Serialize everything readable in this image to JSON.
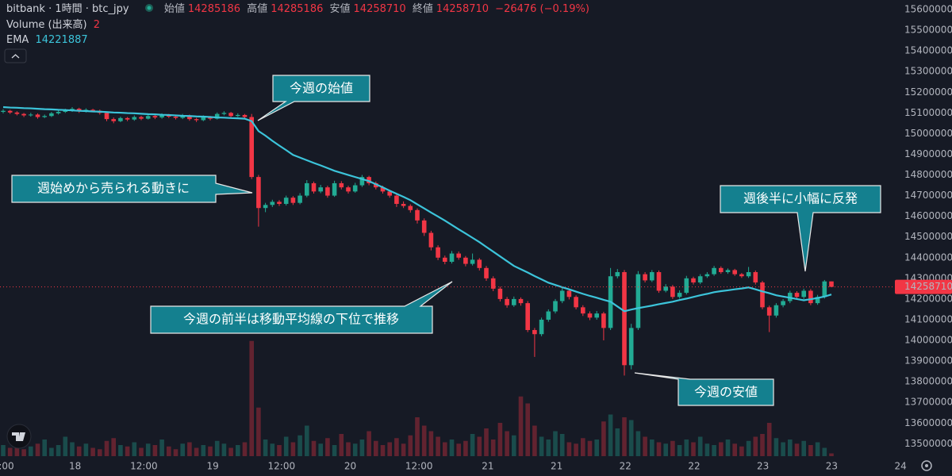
{
  "chart_data": {
    "type": "candlestick",
    "header": {
      "symbol": "bitbank · 1時間 · btc_jpy",
      "open_label": "始値",
      "high_label": "高値",
      "low_label": "安値",
      "close_label": "終値",
      "change": "−26476 (−0.19%)",
      "volume_label": "Volume (出来高)",
      "ema_label": "EMA"
    },
    "x_labels": [
      ":00",
      "18",
      "12:00",
      "19",
      "12:00",
      "20",
      "12:00",
      "21",
      "21",
      "22",
      "22",
      "23",
      "23",
      "24"
    ],
    "up_color": "#22ab94",
    "down_color": "#f23645",
    "ema_color": "#3cc4da",
    "ylim": [
      13440000,
      15646000
    ],
    "yticks": [
      13500000,
      13600000,
      13700000,
      13800000,
      13900000,
      14000000,
      14100000,
      14200000,
      14300000,
      14400000,
      14500000,
      14600000,
      14700000,
      14800000,
      14900000,
      15000000,
      15100000,
      15200000,
      15300000,
      15400000,
      15500000,
      15600000
    ],
    "grid": false,
    "vlim": [
      0,
      100
    ],
    "ohlc": [
      [
        15105000,
        15118000,
        15098000,
        15110000
      ],
      [
        15110000,
        15115000,
        15095000,
        15102000
      ],
      [
        15102000,
        15108000,
        15088000,
        15095000
      ],
      [
        15095000,
        15100000,
        15080000,
        15088000
      ],
      [
        15088000,
        15100000,
        15082000,
        15092000
      ],
      [
        15092000,
        15098000,
        15072000,
        15080000
      ],
      [
        15080000,
        15092000,
        15075000,
        15085000
      ],
      [
        15085000,
        15105000,
        15080000,
        15098000
      ],
      [
        15098000,
        15112000,
        15092000,
        15105000
      ],
      [
        15105000,
        15120000,
        15100000,
        15112000
      ],
      [
        15112000,
        15128000,
        15105000,
        15120000
      ],
      [
        15120000,
        15125000,
        15100000,
        15108000
      ],
      [
        15108000,
        15122000,
        15102000,
        15115000
      ],
      [
        15115000,
        15120000,
        15104000,
        15110000
      ],
      [
        15110000,
        15116000,
        15092000,
        15100000
      ],
      [
        15100000,
        15105000,
        15060000,
        15070000
      ],
      [
        15070000,
        15078000,
        15050000,
        15060000
      ],
      [
        15060000,
        15082000,
        15055000,
        15075000
      ],
      [
        15075000,
        15080000,
        15060000,
        15068000
      ],
      [
        15068000,
        15088000,
        15062000,
        15080000
      ],
      [
        15080000,
        15086000,
        15065000,
        15072000
      ],
      [
        15072000,
        15092000,
        15068000,
        15085000
      ],
      [
        15085000,
        15090000,
        15070000,
        15078000
      ],
      [
        15078000,
        15098000,
        15072000,
        15090000
      ],
      [
        15090000,
        15095000,
        15075000,
        15082000
      ],
      [
        15082000,
        15088000,
        15068000,
        15076000
      ],
      [
        15076000,
        15095000,
        15070000,
        15088000
      ],
      [
        15088000,
        15092000,
        15062000,
        15070000
      ],
      [
        15070000,
        15076000,
        15056000,
        15065000
      ],
      [
        15065000,
        15088000,
        15060000,
        15080000
      ],
      [
        15080000,
        15085000,
        15064000,
        15072000
      ],
      [
        15072000,
        15102000,
        15068000,
        15095000
      ],
      [
        15095000,
        15108000,
        15088000,
        15100000
      ],
      [
        15100000,
        15105000,
        15078000,
        15085000
      ],
      [
        15085000,
        15098000,
        15080000,
        15090000
      ],
      [
        15090000,
        15095000,
        15072000,
        15080000
      ],
      [
        15080000,
        15095000,
        14780000,
        14790000
      ],
      [
        14790000,
        14800000,
        14550000,
        14640000
      ],
      [
        14640000,
        14665000,
        14620000,
        14655000
      ],
      [
        14655000,
        14680000,
        14645000,
        14670000
      ],
      [
        14670000,
        14678000,
        14650000,
        14660000
      ],
      [
        14660000,
        14700000,
        14652000,
        14690000
      ],
      [
        14690000,
        14698000,
        14655000,
        14665000
      ],
      [
        14665000,
        14712000,
        14658000,
        14700000
      ],
      [
        14700000,
        14775000,
        14692000,
        14760000
      ],
      [
        14760000,
        14768000,
        14710000,
        14720000
      ],
      [
        14720000,
        14752000,
        14712000,
        14740000
      ],
      [
        14740000,
        14748000,
        14690000,
        14700000
      ],
      [
        14700000,
        14772000,
        14694000,
        14760000
      ],
      [
        14760000,
        14770000,
        14730000,
        14740000
      ],
      [
        14740000,
        14748000,
        14710000,
        14720000
      ],
      [
        14720000,
        14762000,
        14714000,
        14750000
      ],
      [
        14750000,
        14800000,
        14742000,
        14790000
      ],
      [
        14790000,
        14796000,
        14750000,
        14760000
      ],
      [
        14760000,
        14768000,
        14730000,
        14740000
      ],
      [
        14740000,
        14748000,
        14710000,
        14720000
      ],
      [
        14720000,
        14728000,
        14690000,
        14700000
      ],
      [
        14700000,
        14708000,
        14645000,
        14660000
      ],
      [
        14660000,
        14672000,
        14640000,
        14650000
      ],
      [
        14650000,
        14658000,
        14618000,
        14630000
      ],
      [
        14630000,
        14638000,
        14565000,
        14580000
      ],
      [
        14580000,
        14590000,
        14505000,
        14520000
      ],
      [
        14520000,
        14530000,
        14435000,
        14450000
      ],
      [
        14450000,
        14460000,
        14388000,
        14400000
      ],
      [
        14400000,
        14410000,
        14368000,
        14380000
      ],
      [
        14380000,
        14432000,
        14372000,
        14420000
      ],
      [
        14420000,
        14430000,
        14390000,
        14400000
      ],
      [
        14400000,
        14408000,
        14358000,
        14370000
      ],
      [
        14370000,
        14420000,
        14362000,
        14390000
      ],
      [
        14390000,
        14398000,
        14338000,
        14350000
      ],
      [
        14350000,
        14360000,
        14288000,
        14300000
      ],
      [
        14300000,
        14310000,
        14238000,
        14250000
      ],
      [
        14250000,
        14260000,
        14188000,
        14200000
      ],
      [
        14200000,
        14210000,
        14158000,
        14170000
      ],
      [
        14170000,
        14212000,
        14162000,
        14200000
      ],
      [
        14200000,
        14208000,
        14168000,
        14180000
      ],
      [
        14180000,
        14190000,
        14040000,
        14050000
      ],
      [
        14050000,
        14060000,
        13920000,
        14030000
      ],
      [
        14030000,
        14110000,
        14020000,
        14100000
      ],
      [
        14100000,
        14150000,
        14090000,
        14140000
      ],
      [
        14140000,
        14200000,
        14130000,
        14190000
      ],
      [
        14190000,
        14255000,
        14180000,
        14240000
      ],
      [
        14240000,
        14248000,
        14198000,
        14210000
      ],
      [
        14210000,
        14218000,
        14150000,
        14160000
      ],
      [
        14160000,
        14170000,
        14118000,
        14130000
      ],
      [
        14130000,
        14140000,
        14098000,
        14110000
      ],
      [
        14110000,
        14142000,
        14100000,
        14130000
      ],
      [
        14130000,
        14138000,
        14000000,
        14060000
      ],
      [
        14060000,
        14350000,
        14050000,
        14310000
      ],
      [
        14310000,
        14345000,
        14300000,
        14330000
      ],
      [
        14330000,
        14340000,
        13830000,
        13880000
      ],
      [
        13880000,
        14080000,
        13860000,
        14060000
      ],
      [
        14060000,
        14335000,
        14050000,
        14320000
      ],
      [
        14320000,
        14330000,
        14280000,
        14290000
      ],
      [
        14290000,
        14340000,
        14282000,
        14330000
      ],
      [
        14330000,
        14338000,
        14230000,
        14240000
      ],
      [
        14240000,
        14272000,
        14232000,
        14260000
      ],
      [
        14260000,
        14268000,
        14200000,
        14210000
      ],
      [
        14210000,
        14242000,
        14202000,
        14230000
      ],
      [
        14230000,
        14312000,
        14222000,
        14300000
      ],
      [
        14300000,
        14308000,
        14270000,
        14280000
      ],
      [
        14280000,
        14320000,
        14272000,
        14310000
      ],
      [
        14310000,
        14330000,
        14302000,
        14320000
      ],
      [
        14320000,
        14360000,
        14312000,
        14350000
      ],
      [
        14350000,
        14358000,
        14322000,
        14330000
      ],
      [
        14330000,
        14348000,
        14322000,
        14340000
      ],
      [
        14340000,
        14346000,
        14312000,
        14320000
      ],
      [
        14320000,
        14326000,
        14302000,
        14310000
      ],
      [
        14310000,
        14355000,
        14302000,
        14330000
      ],
      [
        14330000,
        14338000,
        14270000,
        14280000
      ],
      [
        14280000,
        14288000,
        14150000,
        14160000
      ],
      [
        14160000,
        14168000,
        14040000,
        14120000
      ],
      [
        14120000,
        14180000,
        14110000,
        14170000
      ],
      [
        14170000,
        14200000,
        14160000,
        14190000
      ],
      [
        14190000,
        14240000,
        14180000,
        14230000
      ],
      [
        14230000,
        14238000,
        14200000,
        14210000
      ],
      [
        14210000,
        14250000,
        14200000,
        14240000
      ],
      [
        14240000,
        14248000,
        14170000,
        14180000
      ],
      [
        14180000,
        14220000,
        14172000,
        14210000
      ],
      [
        14210000,
        14292000,
        14202000,
        14285186
      ],
      [
        14285186,
        14285186,
        14258710,
        14258710
      ]
    ],
    "volume": [
      8,
      6,
      10,
      5,
      7,
      9,
      12,
      6,
      8,
      14,
      10,
      7,
      9,
      6,
      5,
      11,
      13,
      8,
      7,
      10,
      6,
      9,
      8,
      12,
      7,
      5,
      9,
      10,
      6,
      8,
      7,
      11,
      9,
      6,
      8,
      10,
      83,
      35,
      12,
      9,
      8,
      14,
      10,
      15,
      22,
      11,
      9,
      13,
      8,
      16,
      10,
      9,
      12,
      18,
      11,
      8,
      10,
      13,
      9,
      15,
      28,
      22,
      18,
      14,
      10,
      12,
      9,
      11,
      16,
      14,
      20,
      12,
      24,
      18,
      15,
      43,
      38,
      22,
      14,
      12,
      18,
      16,
      10,
      9,
      13,
      11,
      12,
      25,
      30,
      20,
      28,
      26,
      18,
      14,
      12,
      10,
      9,
      11,
      8,
      12,
      10,
      14,
      9,
      8,
      10,
      12,
      9,
      7,
      11,
      14,
      16,
      24,
      13,
      10,
      12,
      9,
      11,
      8,
      10,
      6,
      2
    ],
    "ema": [
      15128000,
      15126000,
      15125000,
      15123000,
      15122000,
      15120000,
      15118000,
      15117000,
      15115000,
      15114000,
      15112000,
      15110000,
      15109000,
      15107000,
      15106000,
      15104000,
      15102000,
      15101000,
      15099000,
      15098000,
      15096000,
      15094000,
      15093000,
      15091000,
      15090000,
      15088000,
      15086000,
      15085000,
      15083000,
      15082000,
      15080000,
      15078000,
      15077000,
      15075000,
      15074000,
      15072000,
      15060000,
      15012000,
      14990000,
      14965000,
      14942000,
      14920000,
      14897000,
      14884000,
      14871000,
      14858000,
      14846000,
      14833000,
      14820000,
      14810000,
      14800000,
      14790000,
      14780000,
      14770000,
      14755000,
      14740000,
      14724000,
      14709000,
      14694000,
      14678000,
      14658000,
      14638000,
      14618000,
      14599000,
      14579000,
      14558000,
      14537000,
      14517000,
      14496000,
      14475000,
      14452000,
      14429000,
      14406000,
      14383000,
      14360000,
      14344000,
      14328000,
      14311000,
      14295000,
      14279000,
      14268000,
      14257000,
      14247000,
      14236000,
      14225000,
      14215000,
      14206000,
      14196000,
      14187000,
      14164000,
      14141000,
      14149000,
      14156000,
      14162000,
      14168000,
      14175000,
      14181000,
      14187000,
      14195000,
      14202000,
      14210000,
      14218000,
      14225000,
      14233000,
      14238000,
      14242000,
      14247000,
      14251000,
      14256000,
      14247000,
      14237000,
      14228000,
      14218000,
      14212000,
      14206000,
      14200000,
      14194000,
      14199000,
      14205000,
      14212000,
      14221887
    ],
    "annotations": [
      "今週の始値",
      "週始めから売られる動きに",
      "今週の前半は移動平均線の下位で推移",
      "今週の安値",
      "週後半に小幅に反発"
    ]
  }
}
